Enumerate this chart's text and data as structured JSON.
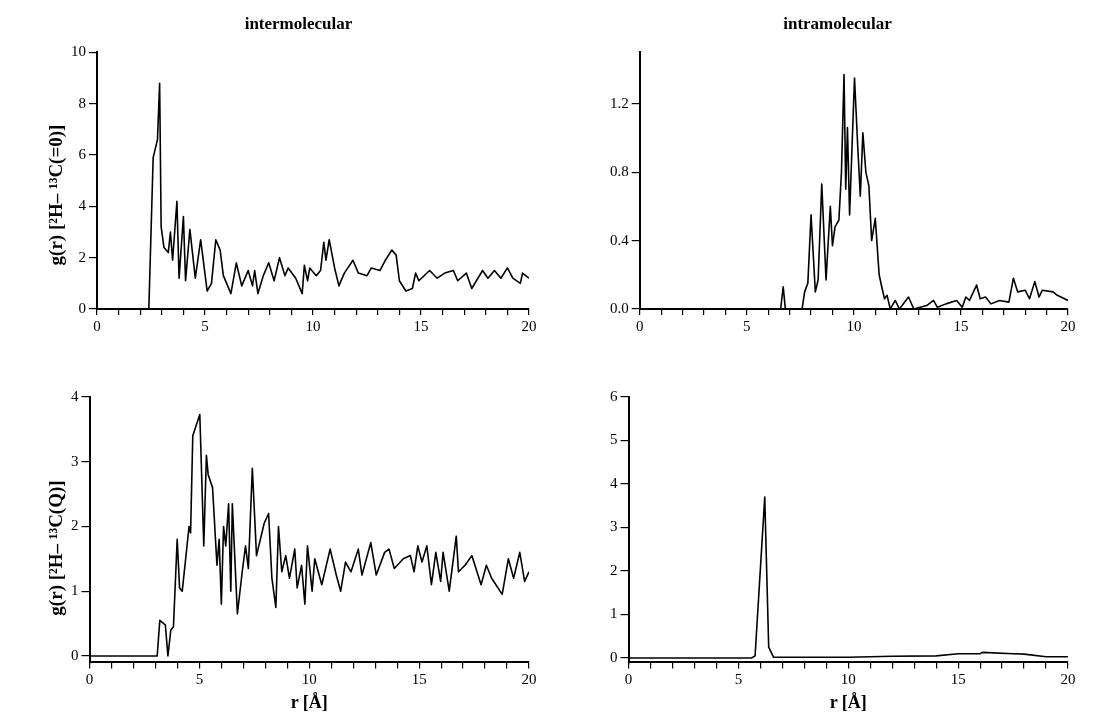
{
  "chart_data": [
    {
      "type": "line",
      "title": "intermolecular",
      "ylabel": "g(r) [²H– ¹³C(=0)]",
      "color": "#000000",
      "marker": "none",
      "xlim": [
        0,
        20
      ],
      "ylim": [
        0,
        10
      ],
      "xticks": [
        0,
        {
          "value": 1,
          "label": null
        },
        {
          "value": 2,
          "label": null
        },
        {
          "value": 3,
          "label": null
        },
        {
          "value": 4,
          "label": null
        },
        5,
        {
          "value": 6,
          "label": null
        },
        {
          "value": 7,
          "label": null
        },
        {
          "value": 8,
          "label": null
        },
        {
          "value": 9,
          "label": null
        },
        10,
        {
          "value": 11,
          "label": null
        },
        {
          "value": 12,
          "label": null
        },
        {
          "value": 13,
          "label": null
        },
        {
          "value": 14,
          "label": null
        },
        15,
        {
          "value": 16,
          "label": null
        },
        {
          "value": 17,
          "label": null
        },
        {
          "value": 18,
          "label": null
        },
        {
          "value": 19,
          "label": null
        },
        20
      ],
      "yticks": [
        0,
        2,
        4,
        6,
        8,
        10
      ],
      "x": [
        0,
        2.4,
        2.6,
        2.8,
        2.9,
        2.97,
        3.1,
        3.3,
        3.4,
        3.5,
        3.7,
        3.8,
        4.0,
        4.1,
        4.3,
        4.55,
        4.8,
        5.1,
        5.3,
        5.5,
        5.7,
        5.85,
        6.2,
        6.45,
        6.7,
        7.0,
        7.2,
        7.3,
        7.45,
        7.7,
        7.95,
        8.2,
        8.45,
        8.7,
        8.85,
        9.2,
        9.5,
        9.6,
        9.75,
        9.85,
        10.15,
        10.35,
        10.5,
        10.6,
        10.75,
        11.0,
        11.2,
        11.45,
        11.85,
        12.1,
        12.5,
        12.7,
        13.1,
        13.35,
        13.65,
        13.85,
        14.0,
        14.3,
        14.6,
        14.75,
        14.9,
        15.4,
        15.75,
        16.1,
        16.5,
        16.7,
        17.1,
        17.35,
        17.85,
        18.1,
        18.4,
        18.7,
        19.0,
        19.25,
        19.6,
        19.7,
        20
      ],
      "values": [
        0,
        0,
        5.9,
        6.6,
        8.8,
        3.2,
        2.4,
        2.2,
        3.0,
        1.9,
        4.2,
        1.2,
        3.6,
        1.1,
        3.1,
        1.2,
        2.7,
        0.7,
        1.0,
        2.7,
        2.3,
        1.3,
        0.6,
        1.8,
        0.9,
        1.5,
        0.9,
        1.5,
        0.6,
        1.3,
        1.8,
        1.1,
        2.0,
        1.3,
        1.6,
        1.2,
        0.6,
        1.7,
        1.1,
        1.6,
        1.3,
        1.5,
        2.6,
        1.9,
        2.7,
        1.6,
        0.9,
        1.4,
        1.9,
        1.4,
        1.3,
        1.6,
        1.5,
        1.9,
        2.3,
        2.1,
        1.1,
        0.7,
        0.8,
        1.4,
        1.1,
        1.5,
        1.2,
        1.4,
        1.5,
        1.1,
        1.4,
        0.8,
        1.5,
        1.2,
        1.5,
        1.2,
        1.6,
        1.2,
        1.0,
        1.4,
        1.2
      ]
    },
    {
      "type": "line",
      "title": "intramolecular",
      "color": "#000000",
      "marker": "none",
      "xlim": [
        0,
        20
      ],
      "ylim": [
        0,
        1.5
      ],
      "xticks": [
        0,
        {
          "value": 1,
          "label": null
        },
        {
          "value": 2,
          "label": null
        },
        {
          "value": 3,
          "label": null
        },
        {
          "value": 4,
          "label": null
        },
        5,
        {
          "value": 6,
          "label": null
        },
        {
          "value": 7,
          "label": null
        },
        {
          "value": 8,
          "label": null
        },
        {
          "value": 9,
          "label": null
        },
        10,
        {
          "value": 11,
          "label": null
        },
        {
          "value": 12,
          "label": null
        },
        {
          "value": 13,
          "label": null
        },
        {
          "value": 14,
          "label": null
        },
        15,
        {
          "value": 16,
          "label": null
        },
        {
          "value": 17,
          "label": null
        },
        {
          "value": 18,
          "label": null
        },
        {
          "value": 19,
          "label": null
        },
        20
      ],
      "yticks": [
        {
          "value": 0,
          "label": "0.0"
        },
        {
          "value": 0.4,
          "label": "0.4"
        },
        {
          "value": 0.8,
          "label": "0.8"
        },
        {
          "value": 1.2,
          "label": "1.2"
        }
      ],
      "x": [
        0,
        6.58,
        6.7,
        6.8,
        7.58,
        7.7,
        7.85,
        8.0,
        8.2,
        8.33,
        8.5,
        8.7,
        8.9,
        9.0,
        9.12,
        9.3,
        9.42,
        9.54,
        9.62,
        9.7,
        9.8,
        9.9,
        10.03,
        10.18,
        10.3,
        10.42,
        10.56,
        10.7,
        10.83,
        11.0,
        11.18,
        11.3,
        11.43,
        11.55,
        11.7,
        11.93,
        12.13,
        12.55,
        12.8,
        13.4,
        13.72,
        13.9,
        14.3,
        14.8,
        15.06,
        15.23,
        15.4,
        15.73,
        15.9,
        16.15,
        16.4,
        16.8,
        17.24,
        17.45,
        17.65,
        18.0,
        18.2,
        18.45,
        18.65,
        18.8,
        19.3,
        19.5,
        20
      ],
      "values": [
        0,
        0,
        0.13,
        0,
        0,
        0.1,
        0.15,
        0.55,
        0.1,
        0.17,
        0.73,
        0.17,
        0.6,
        0.37,
        0.48,
        0.52,
        0.8,
        1.37,
        0.7,
        1.06,
        0.55,
        0.9,
        1.35,
        0.95,
        0.66,
        1.03,
        0.8,
        0.72,
        0.4,
        0.53,
        0.2,
        0.13,
        0.06,
        0.08,
        0,
        0.05,
        0,
        0.07,
        0,
        0.02,
        0.05,
        0.01,
        0.03,
        0.05,
        0.01,
        0.07,
        0.05,
        0.14,
        0.06,
        0.07,
        0.03,
        0.05,
        0.04,
        0.18,
        0.1,
        0.11,
        0.06,
        0.16,
        0.07,
        0.11,
        0.1,
        0.08,
        0.05
      ]
    },
    {
      "type": "line",
      "ylabel": "g(r) [²H– ¹³C(Q)]",
      "xlabel": "r [Å]",
      "color": "#000000",
      "marker": "none",
      "xlim": [
        0,
        20
      ],
      "ylim": [
        -0.1,
        4
      ],
      "xticks": [
        0,
        {
          "value": 1,
          "label": null
        },
        {
          "value": 2,
          "label": null
        },
        {
          "value": 3,
          "label": null
        },
        {
          "value": 4,
          "label": null
        },
        5,
        {
          "value": 6,
          "label": null
        },
        {
          "value": 7,
          "label": null
        },
        {
          "value": 8,
          "label": null
        },
        {
          "value": 9,
          "label": null
        },
        10,
        {
          "value": 11,
          "label": null
        },
        {
          "value": 12,
          "label": null
        },
        {
          "value": 13,
          "label": null
        },
        {
          "value": 14,
          "label": null
        },
        15,
        {
          "value": 16,
          "label": null
        },
        {
          "value": 17,
          "label": null
        },
        {
          "value": 18,
          "label": null
        },
        {
          "value": 19,
          "label": null
        },
        20
      ],
      "yticks": [
        0,
        1,
        2,
        3,
        4
      ],
      "x": [
        0,
        3.08,
        3.2,
        3.45,
        3.57,
        3.7,
        3.82,
        3.99,
        4.1,
        4.22,
        4.53,
        4.6,
        4.7,
        5.02,
        5.2,
        5.32,
        5.4,
        5.6,
        5.8,
        5.9,
        6.0,
        6.1,
        6.2,
        6.33,
        6.43,
        6.5,
        6.73,
        6.95,
        7.1,
        7.23,
        7.41,
        7.6,
        7.95,
        8.15,
        8.3,
        8.48,
        8.6,
        8.75,
        8.93,
        9.1,
        9.34,
        9.45,
        9.65,
        9.8,
        9.92,
        10.13,
        10.25,
        10.57,
        10.95,
        11.23,
        11.43,
        11.65,
        11.9,
        12.23,
        12.4,
        12.8,
        13.05,
        13.43,
        13.63,
        13.87,
        14.28,
        14.6,
        14.77,
        14.94,
        15.13,
        15.35,
        15.56,
        15.76,
        15.98,
        16.09,
        16.37,
        16.69,
        16.79,
        17.09,
        17.4,
        17.82,
        18.06,
        18.3,
        18.78,
        19.06,
        19.3,
        19.58,
        19.8,
        20
      ],
      "values": [
        0,
        0,
        0.55,
        0.48,
        0,
        0.4,
        0.45,
        1.8,
        1.05,
        1.0,
        2.0,
        1.9,
        3.4,
        3.73,
        1.7,
        3.1,
        2.8,
        2.6,
        1.4,
        1.8,
        0.8,
        2.0,
        1.7,
        2.35,
        1.0,
        2.35,
        0.65,
        1.3,
        1.7,
        1.35,
        2.9,
        1.55,
        2.05,
        2.2,
        1.2,
        0.75,
        2.0,
        1.3,
        1.55,
        1.2,
        1.65,
        1.05,
        1.4,
        0.8,
        1.7,
        1.0,
        1.5,
        1.1,
        1.65,
        1.25,
        1.0,
        1.45,
        1.3,
        1.65,
        1.25,
        1.75,
        1.25,
        1.6,
        1.65,
        1.35,
        1.5,
        1.55,
        1.3,
        1.7,
        1.45,
        1.7,
        1.1,
        1.6,
        1.15,
        1.6,
        1.0,
        1.85,
        1.3,
        1.4,
        1.55,
        1.1,
        1.4,
        1.2,
        0.95,
        1.5,
        1.2,
        1.6,
        1.15,
        1.3
      ]
    },
    {
      "type": "line",
      "xlabel": "r [Å]",
      "color": "#000000",
      "marker": "none",
      "xlim": [
        0,
        20
      ],
      "ylim": [
        -0.1,
        6
      ],
      "xticks": [
        0,
        {
          "value": 1,
          "label": null
        },
        {
          "value": 2,
          "label": null
        },
        {
          "value": 3,
          "label": null
        },
        {
          "value": 4,
          "label": null
        },
        5,
        {
          "value": 6,
          "label": null
        },
        {
          "value": 7,
          "label": null
        },
        {
          "value": 8,
          "label": null
        },
        {
          "value": 9,
          "label": null
        },
        10,
        {
          "value": 11,
          "label": null
        },
        {
          "value": 12,
          "label": null
        },
        {
          "value": 13,
          "label": null
        },
        {
          "value": 14,
          "label": null
        },
        15,
        {
          "value": 16,
          "label": null
        },
        {
          "value": 17,
          "label": null
        },
        {
          "value": 18,
          "label": null
        },
        {
          "value": 19,
          "label": null
        },
        20
      ],
      "yticks": [
        0,
        1,
        2,
        3,
        4,
        5,
        6
      ],
      "x": [
        0,
        5.6,
        5.76,
        6.2,
        6.38,
        6.6,
        10,
        12,
        14,
        15,
        16,
        16.1,
        17.5,
        18,
        19,
        20
      ],
      "values": [
        0,
        0,
        0.05,
        3.7,
        0.25,
        0.02,
        0.02,
        0.04,
        0.05,
        0.1,
        0.1,
        0.13,
        0.1,
        0.09,
        0.03,
        0.03
      ]
    }
  ]
}
